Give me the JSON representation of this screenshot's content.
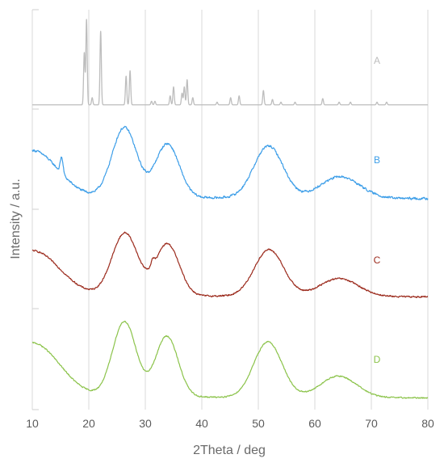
{
  "chart_data": {
    "type": "line",
    "title": "",
    "xlabel": "2Theta / deg",
    "ylabel": "Intensity / a.u.",
    "xlim": [
      10,
      80
    ],
    "xticks": [
      10,
      20,
      30,
      40,
      50,
      60,
      70,
      80
    ],
    "grid": "vertical",
    "layout": "stacked panels",
    "series": [
      {
        "name": "A",
        "color": "#bdbdbd",
        "style": "reference stick pattern",
        "baseline": 0.02,
        "peaks": [
          {
            "x": 19.2,
            "y": 0.58,
            "w": 0.12
          },
          {
            "x": 19.6,
            "y": 0.95,
            "w": 0.12
          },
          {
            "x": 20.6,
            "y": 0.08,
            "w": 0.12
          },
          {
            "x": 22.1,
            "y": 0.82,
            "w": 0.12
          },
          {
            "x": 26.6,
            "y": 0.32,
            "w": 0.12
          },
          {
            "x": 27.3,
            "y": 0.38,
            "w": 0.12
          },
          {
            "x": 31.1,
            "y": 0.04,
            "w": 0.12
          },
          {
            "x": 31.7,
            "y": 0.04,
            "w": 0.12
          },
          {
            "x": 34.4,
            "y": 0.1,
            "w": 0.12
          },
          {
            "x": 35.0,
            "y": 0.2,
            "w": 0.12
          },
          {
            "x": 36.5,
            "y": 0.13,
            "w": 0.12
          },
          {
            "x": 36.9,
            "y": 0.2,
            "w": 0.12
          },
          {
            "x": 37.4,
            "y": 0.28,
            "w": 0.12
          },
          {
            "x": 38.4,
            "y": 0.08,
            "w": 0.12
          },
          {
            "x": 42.7,
            "y": 0.03,
            "w": 0.12
          },
          {
            "x": 45.1,
            "y": 0.08,
            "w": 0.12
          },
          {
            "x": 46.6,
            "y": 0.1,
            "w": 0.12
          },
          {
            "x": 50.9,
            "y": 0.16,
            "w": 0.12
          },
          {
            "x": 52.5,
            "y": 0.06,
            "w": 0.12
          },
          {
            "x": 54.0,
            "y": 0.03,
            "w": 0.12
          },
          {
            "x": 56.5,
            "y": 0.03,
            "w": 0.12
          },
          {
            "x": 61.4,
            "y": 0.07,
            "w": 0.12
          },
          {
            "x": 64.3,
            "y": 0.03,
            "w": 0.12
          },
          {
            "x": 66.3,
            "y": 0.03,
            "w": 0.12
          },
          {
            "x": 71.0,
            "y": 0.03,
            "w": 0.12
          },
          {
            "x": 72.7,
            "y": 0.03,
            "w": 0.12
          }
        ]
      },
      {
        "name": "B",
        "color": "#3d9ee8",
        "style": "diffraction pattern",
        "baseline": 0.1,
        "slope": 0.0025,
        "noise": 0.018,
        "peaks": [
          {
            "x": 10.0,
            "y": 0.52,
            "w": 4.5
          },
          {
            "x": 15.2,
            "y": 0.18,
            "w": 0.25
          },
          {
            "x": 26.3,
            "y": 0.78,
            "w": 2.2
          },
          {
            "x": 33.9,
            "y": 0.6,
            "w": 2.1
          },
          {
            "x": 51.8,
            "y": 0.58,
            "w": 2.6
          },
          {
            "x": 64.5,
            "y": 0.24,
            "w": 3.5
          }
        ]
      },
      {
        "name": "C",
        "color": "#9b2a1c",
        "style": "diffraction pattern",
        "baseline": 0.12,
        "slope": 0.0022,
        "noise": 0.012,
        "peaks": [
          {
            "x": 10.0,
            "y": 0.5,
            "w": 4.8
          },
          {
            "x": 26.4,
            "y": 0.7,
            "w": 2.3
          },
          {
            "x": 31.3,
            "y": 0.08,
            "w": 0.3
          },
          {
            "x": 33.9,
            "y": 0.58,
            "w": 2.1
          },
          {
            "x": 51.9,
            "y": 0.52,
            "w": 2.6
          },
          {
            "x": 64.3,
            "y": 0.2,
            "w": 3.4
          }
        ]
      },
      {
        "name": "D",
        "color": "#8bc34a",
        "style": "diffraction pattern",
        "baseline": 0.1,
        "slope": 0.002,
        "noise": 0.01,
        "peaks": [
          {
            "x": 10.0,
            "y": 0.6,
            "w": 4.8
          },
          {
            "x": 26.3,
            "y": 0.84,
            "w": 2.1
          },
          {
            "x": 33.8,
            "y": 0.68,
            "w": 2.0
          },
          {
            "x": 51.7,
            "y": 0.62,
            "w": 2.5
          },
          {
            "x": 64.2,
            "y": 0.24,
            "w": 3.2
          }
        ]
      }
    ]
  }
}
